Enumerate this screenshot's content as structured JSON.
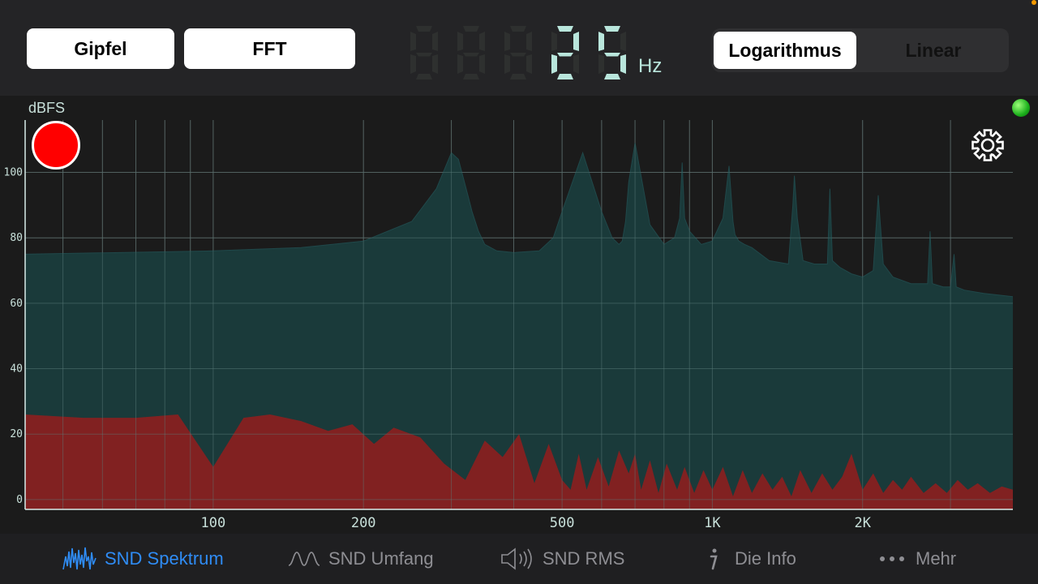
{
  "toolbar": {
    "peak_label": "Gipfel",
    "fft_label": "FFT",
    "frequency_value": "25",
    "frequency_unit": "Hz",
    "scale_options": [
      "Logarithmus",
      "Linear"
    ],
    "scale_selected": "Logarithmus"
  },
  "chart_data": {
    "type": "area",
    "ylabel": "dBFS",
    "x_scale": "log",
    "xlim": [
      42,
      4000
    ],
    "ylim": [
      -3,
      116
    ],
    "x_tick_labels": [
      {
        "value": 100,
        "label": "100"
      },
      {
        "value": 200,
        "label": "200"
      },
      {
        "value": 500,
        "label": "500"
      },
      {
        "value": 1000,
        "label": "1K"
      },
      {
        "value": 2000,
        "label": "2K"
      }
    ],
    "y_ticks": [
      0,
      20,
      40,
      60,
      80,
      100
    ],
    "grid": true,
    "series": [
      {
        "key": "peak",
        "color": "#1a3d3d",
        "line_color": "#20484a",
        "x": [
          42,
          100,
          150,
          200,
          250,
          280,
          300,
          310,
          320,
          325,
          330,
          340,
          350,
          370,
          400,
          450,
          480,
          500,
          550,
          600,
          630,
          650,
          660,
          670,
          680,
          700,
          750,
          800,
          840,
          860,
          870,
          880,
          900,
          950,
          1000,
          1050,
          1080,
          1100,
          1110,
          1130,
          1160,
          1200,
          1300,
          1420,
          1450,
          1460,
          1480,
          1520,
          1600,
          1700,
          1720,
          1740,
          1800,
          1900,
          2000,
          2100,
          2150,
          2200,
          2300,
          2500,
          2700,
          2730,
          2760,
          2900,
          3000,
          3050,
          3080,
          3200,
          3500,
          4000
        ],
        "y": [
          75,
          76,
          77,
          79,
          85,
          95,
          106,
          104,
          96,
          92,
          88,
          82,
          78,
          76,
          75.5,
          76,
          80,
          88,
          106,
          88,
          80,
          78,
          79,
          85,
          97,
          109,
          84,
          78,
          80,
          86,
          103,
          86,
          82,
          78,
          79,
          86,
          102,
          85,
          81,
          79,
          78,
          77,
          73,
          72,
          90,
          99,
          86,
          73,
          72,
          72,
          95,
          73,
          71,
          69,
          68,
          70,
          93,
          72,
          68,
          66,
          66,
          82,
          66,
          65,
          65,
          75,
          65,
          64,
          63,
          62
        ]
      },
      {
        "key": "fft",
        "color": "#8a1f1f",
        "x": [
          42,
          55,
          70,
          85,
          100,
          115,
          130,
          150,
          170,
          190,
          210,
          230,
          260,
          290,
          320,
          350,
          380,
          410,
          440,
          470,
          500,
          520,
          540,
          560,
          590,
          620,
          650,
          680,
          700,
          720,
          750,
          780,
          810,
          850,
          880,
          920,
          960,
          1000,
          1050,
          1100,
          1150,
          1200,
          1260,
          1320,
          1380,
          1440,
          1500,
          1580,
          1660,
          1740,
          1820,
          1900,
          2000,
          2100,
          2200,
          2300,
          2400,
          2500,
          2650,
          2800,
          2950,
          3100,
          3250,
          3400,
          3600,
          3800,
          4000
        ],
        "y": [
          26,
          25,
          25,
          26,
          10,
          25,
          26,
          24,
          21,
          23,
          17,
          22,
          19,
          11,
          6,
          18,
          13,
          20,
          5,
          17,
          6,
          3,
          14,
          3,
          13,
          4,
          15,
          8,
          14,
          3,
          12,
          2,
          11,
          3,
          10,
          2,
          9,
          3,
          10,
          1,
          9,
          2,
          8,
          3,
          7,
          1,
          9,
          2,
          8,
          3,
          7,
          14,
          3,
          8,
          2,
          6,
          3,
          7,
          2,
          5,
          2,
          6,
          3,
          5,
          2,
          4,
          3
        ]
      }
    ]
  },
  "chart_ui": {
    "record_color": "#ff0000",
    "status_led_color": "#22c422"
  },
  "tabs": [
    {
      "label": "SND Spektrum",
      "icon": "spectrum-icon",
      "active": true
    },
    {
      "label": "SND Umfang",
      "icon": "waveform-icon",
      "active": false
    },
    {
      "label": "SND RMS",
      "icon": "speaker-icon",
      "active": false
    },
    {
      "label": "Die Info",
      "icon": "info-icon",
      "active": false
    },
    {
      "label": "Mehr",
      "icon": "more-icon",
      "active": false
    }
  ]
}
